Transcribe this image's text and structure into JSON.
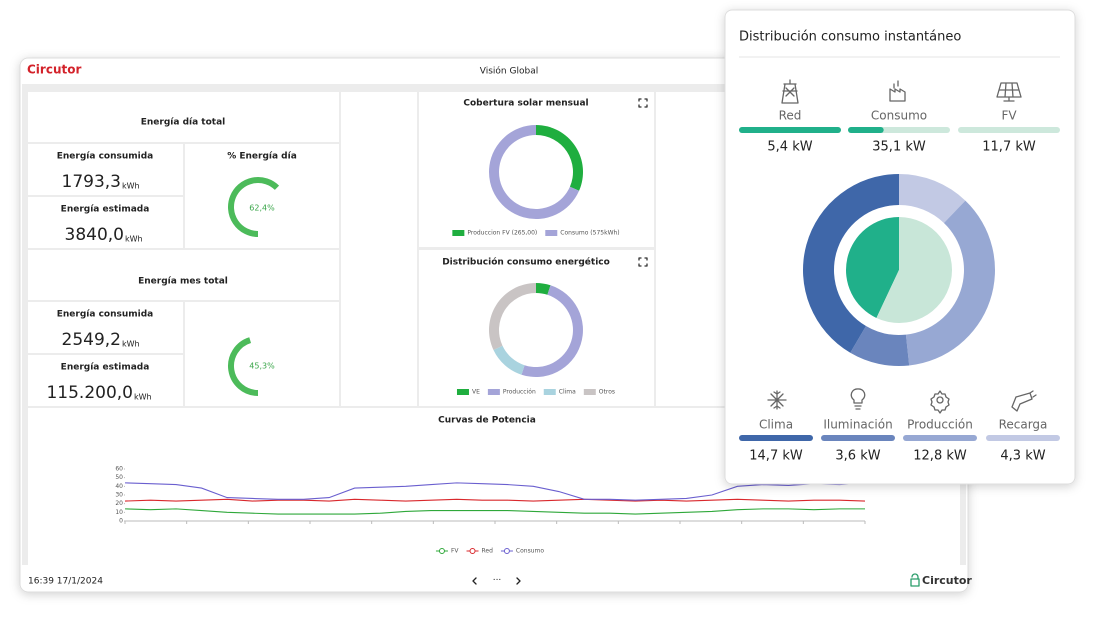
{
  "header": {
    "brand": "Circutor",
    "title": "Visión Global"
  },
  "daily": {
    "title": "Energía día total",
    "consumed_label": "Energía consumida",
    "consumed": "1793,3",
    "estimated_label": "Energía estimada",
    "estimated": "3840,0",
    "unit": "kWh",
    "gauge_title": "% Energía día",
    "gauge_value": 62.4,
    "gauge_label": "62,4%",
    "color": "#4cbb5a"
  },
  "monthly": {
    "title": "Energía mes total",
    "consumed_label": "Energía consumida",
    "consumed": "2549,2",
    "estimated_label": "Energía estimada",
    "estimated": "115.200,0",
    "unit": "kWh",
    "gauge_value": 45.3,
    "gauge_label": "45,3%",
    "color": "#4cbb5a"
  },
  "solar": {
    "type": "donut",
    "title": "Cobertura solar mensual",
    "series": [
      {
        "name": "Produccion FV (265,00)",
        "color": "#1fae3f",
        "value": 265
      },
      {
        "name": "Consumo (575kWh)",
        "color": "#a4a4d8",
        "value": 575
      }
    ]
  },
  "distribution": {
    "type": "donut",
    "title": "Distribución consumo energético",
    "series": [
      {
        "name": "VE",
        "color": "#1fae3f",
        "value": 5
      },
      {
        "name": "Producción",
        "color": "#a4a4d8",
        "value": 50
      },
      {
        "name": "Clima",
        "color": "#a9d3df",
        "value": 13
      },
      {
        "name": "Otros",
        "color": "#c9c4c4",
        "value": 32
      }
    ]
  },
  "power": {
    "type": "line",
    "title": "Curvas de Potencia",
    "ylim": [
      0,
      60
    ],
    "yticks": [
      0,
      10,
      20,
      30,
      40,
      50,
      60
    ],
    "grid": false,
    "series": [
      {
        "name": "FV",
        "color": "#2fa83a",
        "values": [
          14,
          13,
          14,
          12,
          10,
          9,
          8,
          8,
          8,
          8,
          9,
          11,
          12,
          12,
          12,
          12,
          11,
          10,
          9,
          9,
          8,
          9,
          10,
          11,
          13,
          14,
          14,
          13,
          14,
          14
        ]
      },
      {
        "name": "Red",
        "color": "#d9282c",
        "values": [
          23,
          24,
          23,
          24,
          25,
          23,
          24,
          24,
          23,
          25,
          24,
          23,
          24,
          25,
          24,
          24,
          23,
          24,
          25,
          24,
          23,
          24,
          23,
          24,
          25,
          24,
          23,
          24,
          24,
          23
        ]
      },
      {
        "name": "Consumo",
        "color": "#6a5fcf",
        "values": [
          44,
          43,
          42,
          38,
          27,
          26,
          25,
          25,
          27,
          38,
          39,
          40,
          42,
          44,
          43,
          42,
          40,
          34,
          25,
          25,
          24,
          25,
          26,
          30,
          40,
          42,
          41,
          43,
          42,
          44
        ]
      }
    ]
  },
  "footer": {
    "datetime": "16:39 17/1/2024",
    "pager": "···",
    "brand": "Circutor"
  },
  "popup": {
    "title": "Distribución consumo instantáneo",
    "bar_color": "#20b08a",
    "bar_track": "#cde8dc",
    "sources": [
      {
        "name": "Red",
        "value": 5.4,
        "value_label": "5,4 kW",
        "fill": 100
      },
      {
        "name": "Consumo",
        "value": 35.1,
        "value_label": "35,1 kW",
        "fill": 35
      },
      {
        "name": "FV",
        "value": 11.7,
        "value_label": "11,7 kW",
        "fill": 0
      }
    ],
    "pie": {
      "values": [
        43,
        57
      ],
      "colors": [
        "#20b08a",
        "#c8e6d8"
      ]
    },
    "loads": [
      {
        "name": "Clima",
        "value": 14.7,
        "value_label": "14,7 kW",
        "color": "#3f67a9"
      },
      {
        "name": "Iluminación",
        "value": 3.6,
        "value_label": "3,6 kW",
        "color": "#6a85bd"
      },
      {
        "name": "Producción",
        "value": 12.8,
        "value_label": "12,8 kW",
        "color": "#97a8d3"
      },
      {
        "name": "Recarga",
        "value": 4.3,
        "value_label": "4,3 kW",
        "color": "#c2c9e4"
      }
    ]
  }
}
